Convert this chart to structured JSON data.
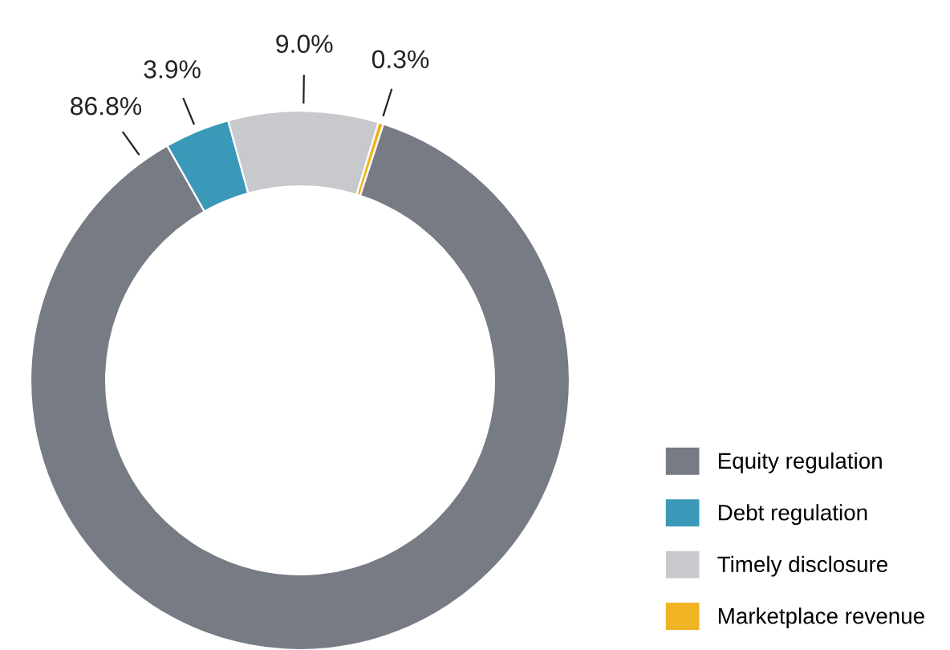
{
  "chart_data": {
    "type": "donut",
    "categories": [
      "Equity regulation",
      "Debt regulation",
      "Timely disclosure",
      "Marketplace revenue"
    ],
    "values": [
      86.8,
      3.9,
      9.0,
      0.3
    ],
    "colors": [
      "#767b84",
      "#3a99b8",
      "#c8c9cd",
      "#f0b323"
    ],
    "value_labels": [
      "86.8%",
      "3.9%",
      "9.0%",
      "0.3%"
    ],
    "legend": "bottom right"
  }
}
